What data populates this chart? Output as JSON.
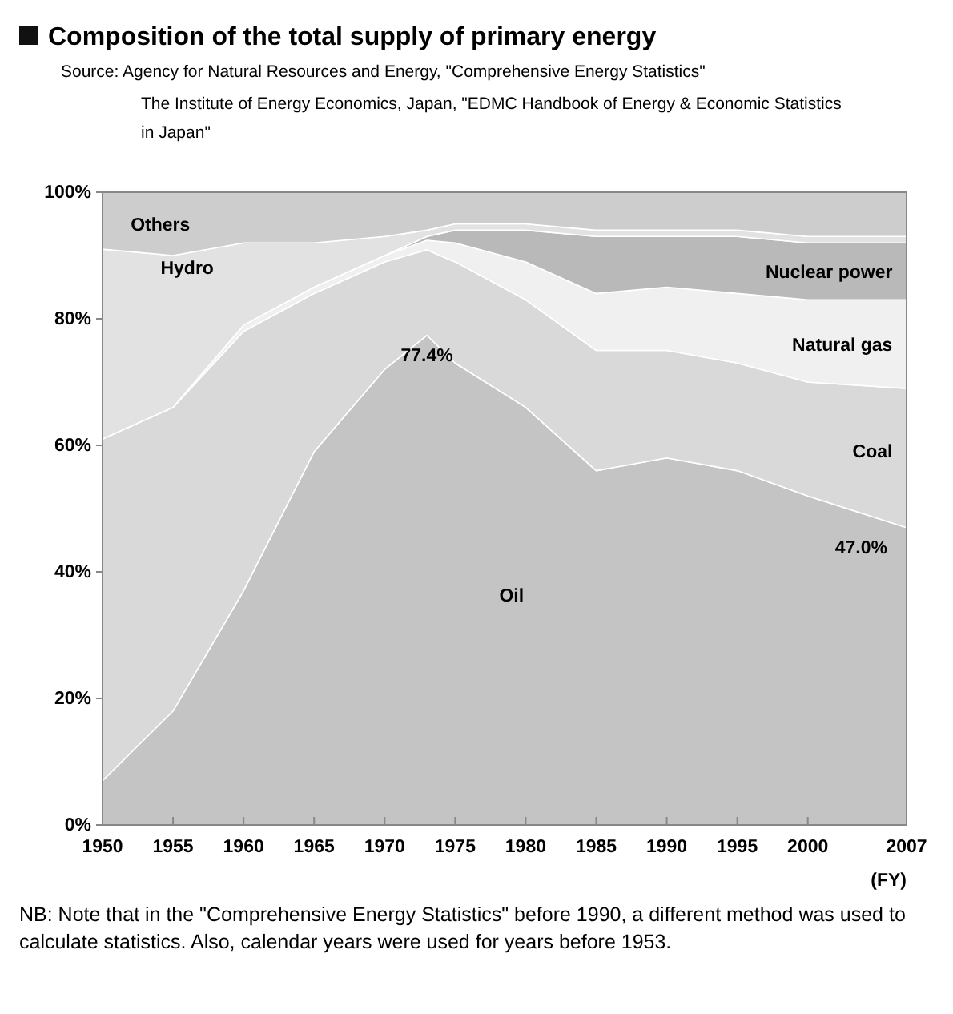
{
  "chart_data": {
    "type": "area",
    "stacked": true,
    "title": "Composition of the total supply of primary energy",
    "xlabel": "(FY)",
    "x": [
      1950,
      1955,
      1960,
      1965,
      1970,
      1973,
      1975,
      1980,
      1985,
      1990,
      1995,
      2000,
      2007
    ],
    "xlim": [
      1950,
      2007
    ],
    "xticks": [
      1950,
      1955,
      1960,
      1965,
      1970,
      1975,
      1980,
      1985,
      1990,
      1995,
      2000,
      2007
    ],
    "ylim": [
      0,
      100
    ],
    "yticks": [
      {
        "value": 0,
        "label": "0%"
      },
      {
        "value": 20,
        "label": "20%"
      },
      {
        "value": 40,
        "label": "40%"
      },
      {
        "value": 60,
        "label": "60%"
      },
      {
        "value": 80,
        "label": "80%"
      },
      {
        "value": 100,
        "label": "100%"
      }
    ],
    "series": [
      {
        "name": "Oil",
        "color": "#c4c4c4",
        "values": [
          7,
          18,
          37,
          59,
          72,
          77.4,
          73,
          66,
          56,
          58,
          56,
          52,
          47
        ]
      },
      {
        "name": "Coal",
        "color": "#d9d9d9",
        "values": [
          54,
          48,
          41,
          25,
          17,
          13.5,
          16,
          17,
          19,
          17,
          17,
          18,
          22
        ]
      },
      {
        "name": "Natural gas",
        "color": "#f0f0f0",
        "values": [
          0,
          0,
          1,
          1,
          1,
          1.5,
          3,
          6,
          9,
          10,
          11,
          13,
          14
        ]
      },
      {
        "name": "Nuclear power",
        "color": "#b9b9b9",
        "values": [
          0,
          0,
          0,
          0,
          0,
          0.6,
          2,
          5,
          9,
          8,
          9,
          9,
          9
        ]
      },
      {
        "name": "Hydro",
        "color": "#e2e2e2",
        "values": [
          30,
          24,
          13,
          7,
          3,
          1,
          1,
          1,
          1,
          1,
          1,
          1,
          1
        ]
      },
      {
        "name": "Others",
        "color": "#cdcdcd",
        "values": [
          9,
          10,
          8,
          8,
          7,
          6,
          5,
          5,
          6,
          6,
          6,
          7,
          7
        ]
      }
    ],
    "annotations": [
      {
        "text": "77.4%",
        "x": 1973,
        "y": 77.4
      },
      {
        "text": "47.0%",
        "x": 2007,
        "y": 47
      },
      "Source: Agency for Natural Resources and Energy, \"Comprehensive Energy Statistics\"",
      "The Institute of Energy Economics, Japan, \"EDMC Handbook of Energy & Economic Statistics in Japan\"",
      "NB: Note that in the \"Comprehensive Energy Statistics\" before 1990, a different method was used to calculate statistics. Also, calendar years were used for years before 1953."
    ]
  }
}
